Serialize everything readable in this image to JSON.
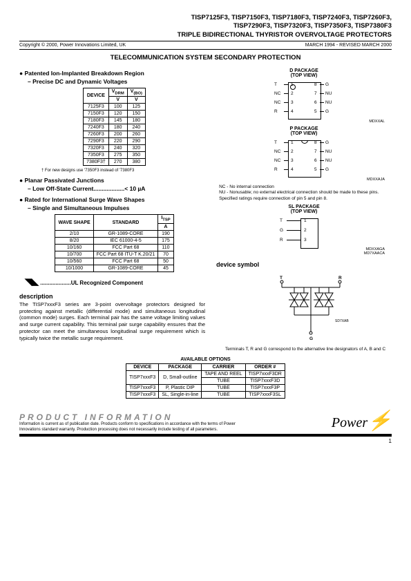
{
  "header": {
    "title_line1": "TISP7125F3, TISP7150F3, TISP7180F3, TISP7240F3, TISP7260F3,",
    "title_line2": "TISP7290F3, TISP7320F3, TISP7350F3, TISP7380F3",
    "title_line3": "TRIPLE BIDIRECTIONAL THYRISTOR OVERVOLTAGE PROTECTORS",
    "copyright": "Copyright © 2000, Power Innovations Limited, UK",
    "date": "MARCH 1994 - REVISED MARCH 2000"
  },
  "section_title": "TELECOMMUNICATION SYSTEM SECONDARY PROTECTION",
  "bullets": {
    "b1": "Patented Ion-Implanted Breakdown Region",
    "b1_sub": "– Precise DC and Dynamic Voltages",
    "b2": "Planar Passivated Junctions",
    "b2_sub": "– Low Off-State Current...................< 10 µA",
    "b3": "Rated for International Surge Wave Shapes",
    "b3_sub": "– Single and Simultaneous Impulses"
  },
  "table1": {
    "headers": [
      "DEVICE",
      "V_DRM",
      "V_(BO)"
    ],
    "unit": "V",
    "rows": [
      [
        "7125F3",
        "100",
        "125"
      ],
      [
        "7150F3",
        "120",
        "150"
      ],
      [
        "7180F3",
        "145",
        "180"
      ],
      [
        "7240F3",
        "180",
        "240"
      ],
      [
        "7260F3",
        "200",
        "260"
      ],
      [
        "7290F3",
        "220",
        "290"
      ],
      [
        "7320F3",
        "240",
        "320"
      ],
      [
        "7350F3",
        "275",
        "350"
      ],
      [
        "7380F3†",
        "270",
        "380"
      ]
    ],
    "note": "† For new designs use '7350F3 instead of '7380F3"
  },
  "table2": {
    "headers": [
      "WAVE SHAPE",
      "STANDARD",
      "I_TSP"
    ],
    "unit": "A",
    "rows": [
      [
        "2/10",
        "GR-1089-CORE",
        "190"
      ],
      [
        "8/20",
        "IEC 61000-4-5",
        "175"
      ],
      [
        "10/160",
        "FCC Part 68",
        "110"
      ],
      [
        "10/700",
        "FCC Part 68 ITU-T K.20/21",
        "70"
      ],
      [
        "10/560",
        "FCC Part 68",
        "50"
      ],
      [
        "10/1000",
        "GR-1089-CORE",
        "45"
      ]
    ]
  },
  "ul_line": "....................UL Recognized Component",
  "description": {
    "title": "description",
    "text": "The TISP7xxxF3 series are 3-point overvoltage protectors designed for protecting against metallic (differential mode) and simultaneous longitudinal (common mode) surges. Each terminal pair has the same voltage limiting values and surge current capability. This terminal pair surge capability ensures that the protector can meet the simultaneous longitudinal surge requirement which is typically twice the metallic surge requirement."
  },
  "packages": {
    "d": {
      "title": "D PACKAGE",
      "sub": "(TOP VIEW)",
      "code": "MDXXAL",
      "left_pins": [
        "T",
        "NC",
        "NC",
        "R"
      ],
      "left_nums": [
        "1",
        "2",
        "3",
        "4"
      ],
      "right_pins": [
        "G",
        "NU",
        "NU",
        "G"
      ],
      "right_nums": [
        "8",
        "7",
        "6",
        "5"
      ]
    },
    "p": {
      "title": "P PACKAGE",
      "sub": "(TOP VIEW)",
      "code": "MDXXAJA",
      "left_pins": [
        "T",
        "NC",
        "NC",
        "R"
      ],
      "left_nums": [
        "1",
        "2",
        "3",
        "4"
      ],
      "right_pins": [
        "G",
        "NU",
        "NU",
        "G"
      ],
      "right_nums": [
        "8",
        "7",
        "6",
        "5"
      ]
    },
    "sl": {
      "title": "SL PACKAGE",
      "sub": "(TOP VIEW)",
      "code1": "MDXXAGA",
      "code2": "MD7XAACA",
      "pins": [
        "T",
        "G",
        "R"
      ],
      "nums": [
        "1",
        "2",
        "3"
      ]
    },
    "nc_note": "NC - No internal connection",
    "nu_note": "NU - Nonusable; no external electrical connection should be made to these pins.",
    "spec_note": "Specified ratings require connection of pin 5 and pin 8."
  },
  "device_symbol": {
    "title": "device symbol",
    "t": "T",
    "r": "R",
    "g": "G",
    "code": "SD7XAB",
    "note": "Terminals T, R and G correspond to the alternative line designators of A, B and C"
  },
  "table3": {
    "title": "AVAILABLE OPTIONS",
    "headers": [
      "DEVICE",
      "PACKAGE",
      "CARRIER",
      "ORDER #"
    ],
    "rows": [
      [
        "TISP7xxxF3",
        "D, Small-outline",
        "TAPE AND REEL",
        "TISP7xxxF3DR"
      ],
      [
        "",
        "",
        "TUBE",
        "TISP7xxxF3D"
      ],
      [
        "TISP7xxxF3",
        "P, Plastic DIP",
        "TUBE",
        "TISP7xxxF3P"
      ],
      [
        "TISP7xxxF3",
        "SL, Single-in-line",
        "TUBE",
        "TISP7xxxF3SL"
      ]
    ]
  },
  "footer": {
    "title": "PRODUCT INFORMATION",
    "text": "Information is current as of publication date. Products conform to specifications in accordance with the terms of Power Innovations standard warranty. Production processing does not necessarily include testing of all parameters.",
    "logo": "Power",
    "page": "1"
  }
}
